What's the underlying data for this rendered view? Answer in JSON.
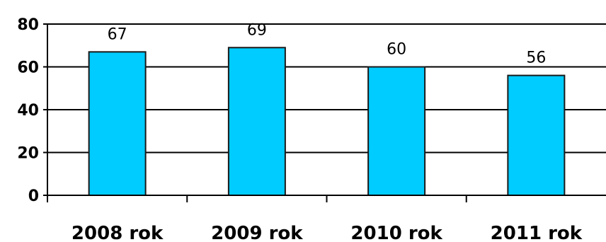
{
  "chart_data": {
    "type": "bar",
    "categories": [
      "2008 rok",
      "2009 rok",
      "2010 rok",
      "2011 rok"
    ],
    "series": [
      {
        "values": [
          67,
          69,
          60,
          56
        ]
      }
    ],
    "data_labels": [
      "67",
      "69",
      "60",
      "56"
    ],
    "y_ticks": [
      "0",
      "20",
      "40",
      "60",
      "80"
    ],
    "ylim": [
      0,
      80
    ],
    "grid": true,
    "legend": "none",
    "colors": {
      "bar_fill": "#00CCFF",
      "bar_stroke": "#1a1a1a",
      "grid": "#000000",
      "axis": "#000000"
    }
  }
}
